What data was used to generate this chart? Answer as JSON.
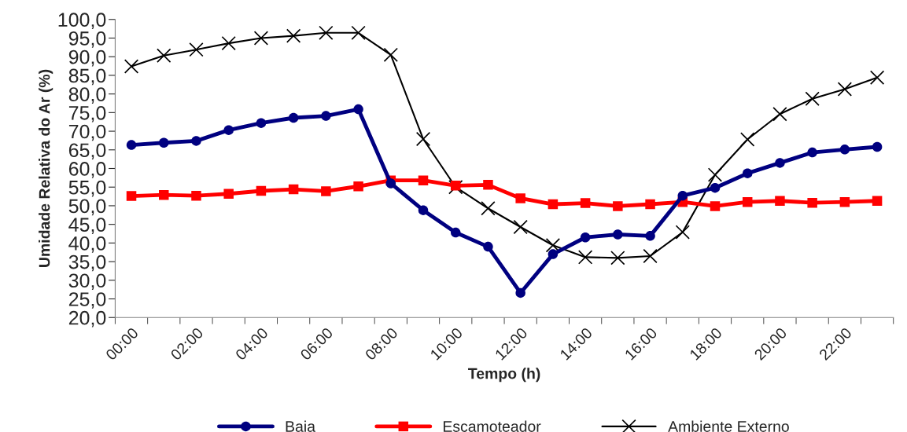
{
  "chart_data": {
    "type": "line",
    "xlabel": "Tempo (h)",
    "ylabel": "Umidade Relativa do Ar (%)",
    "categories": [
      "00:00",
      null,
      "02:00",
      null,
      "04:00",
      null,
      "06:00",
      null,
      "08:00",
      null,
      "10:00",
      null,
      "12:00",
      null,
      "14:00",
      null,
      "16:00",
      null,
      "18:00",
      null,
      "20:00",
      null,
      "22:00",
      null
    ],
    "series": [
      {
        "name": "Baia",
        "color": "#000080",
        "marker": "circle",
        "values": [
          66.3,
          66.9,
          67.4,
          70.3,
          72.2,
          73.6,
          74.1,
          75.9,
          56.0,
          48.8,
          42.8,
          39.0,
          26.6,
          37.0,
          41.5,
          42.3,
          41.9,
          52.7,
          54.8,
          58.7,
          61.5,
          64.3,
          65.1,
          65.8
        ]
      },
      {
        "name": "Escamoteador",
        "color": "#ff0000",
        "marker": "square",
        "values": [
          52.6,
          52.9,
          52.7,
          53.2,
          54.0,
          54.4,
          53.9,
          55.2,
          56.8,
          56.8,
          55.4,
          55.6,
          52.0,
          50.4,
          50.7,
          49.9,
          50.4,
          51.0,
          49.9,
          51.0,
          51.3,
          50.8,
          51.0,
          51.3
        ]
      },
      {
        "name": "Ambiente Externo",
        "color": "#000000",
        "marker": "cross",
        "values": [
          87.4,
          90.3,
          91.9,
          93.6,
          95.0,
          95.6,
          96.4,
          96.4,
          90.5,
          67.9,
          55.0,
          49.3,
          44.3,
          39.4,
          36.2,
          36.0,
          36.5,
          42.9,
          58.3,
          67.8,
          74.6,
          78.7,
          81.3,
          84.4
        ]
      }
    ],
    "ylim": [
      20,
      100
    ],
    "yticks": [
      {
        "value": 20,
        "label": "20,0"
      },
      {
        "value": 25,
        "label": "25,0"
      },
      {
        "value": 30,
        "label": "30,0"
      },
      {
        "value": 35,
        "label": "35,0"
      },
      {
        "value": 40,
        "label": "40,0"
      },
      {
        "value": 45,
        "label": "45,0"
      },
      {
        "value": 50,
        "label": "50,0"
      },
      {
        "value": 55,
        "label": "55,0"
      },
      {
        "value": 60,
        "label": "60,0"
      },
      {
        "value": 65,
        "label": "65,0"
      },
      {
        "value": 70,
        "label": "70,0"
      },
      {
        "value": 75,
        "label": "75,0"
      },
      {
        "value": 80,
        "label": "80,0"
      },
      {
        "value": 85,
        "label": "85,0"
      },
      {
        "value": 90,
        "label": "90,0"
      },
      {
        "value": 95,
        "label": "95,0"
      },
      {
        "value": 100,
        "label": "100,0"
      }
    ],
    "grid": false,
    "legend": "bottom"
  }
}
